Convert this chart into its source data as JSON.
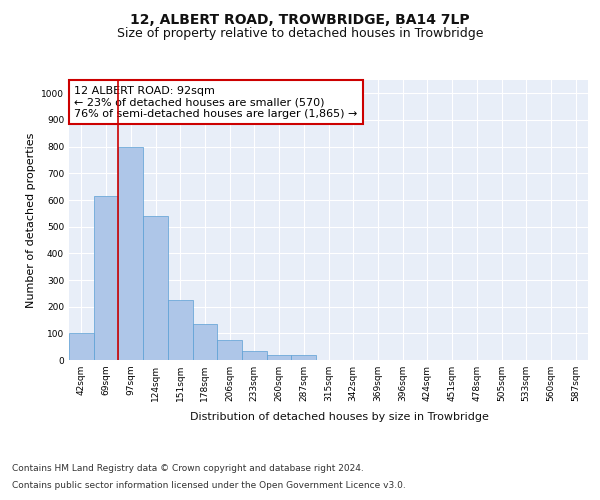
{
  "title1": "12, ALBERT ROAD, TROWBRIDGE, BA14 7LP",
  "title2": "Size of property relative to detached houses in Trowbridge",
  "xlabel": "Distribution of detached houses by size in Trowbridge",
  "ylabel": "Number of detached properties",
  "bar_color": "#aec6e8",
  "bar_edge_color": "#5a9fd4",
  "bin_labels": [
    "42sqm",
    "69sqm",
    "97sqm",
    "124sqm",
    "151sqm",
    "178sqm",
    "206sqm",
    "233sqm",
    "260sqm",
    "287sqm",
    "315sqm",
    "342sqm",
    "369sqm",
    "396sqm",
    "424sqm",
    "451sqm",
    "478sqm",
    "505sqm",
    "533sqm",
    "560sqm",
    "587sqm"
  ],
  "bar_values": [
    100,
    615,
    800,
    540,
    225,
    135,
    75,
    35,
    20,
    20,
    0,
    0,
    0,
    0,
    0,
    0,
    0,
    0,
    0,
    0,
    0
  ],
  "ylim": [
    0,
    1050
  ],
  "yticks": [
    0,
    100,
    200,
    300,
    400,
    500,
    600,
    700,
    800,
    900,
    1000
  ],
  "vline_color": "#cc0000",
  "vline_pos": 1.5,
  "annotation_text": "12 ALBERT ROAD: 92sqm\n← 23% of detached houses are smaller (570)\n76% of semi-detached houses are larger (1,865) →",
  "annotation_box_color": "#ffffff",
  "annotation_edge_color": "#cc0000",
  "footer1": "Contains HM Land Registry data © Crown copyright and database right 2024.",
  "footer2": "Contains public sector information licensed under the Open Government Licence v3.0.",
  "bg_color": "#e8eef8",
  "fig_bg_color": "#ffffff",
  "grid_color": "#ffffff",
  "title1_fontsize": 10,
  "title2_fontsize": 9,
  "annotation_fontsize": 8,
  "ylabel_fontsize": 8,
  "xlabel_fontsize": 8,
  "tick_fontsize": 6.5,
  "footer_fontsize": 6.5
}
